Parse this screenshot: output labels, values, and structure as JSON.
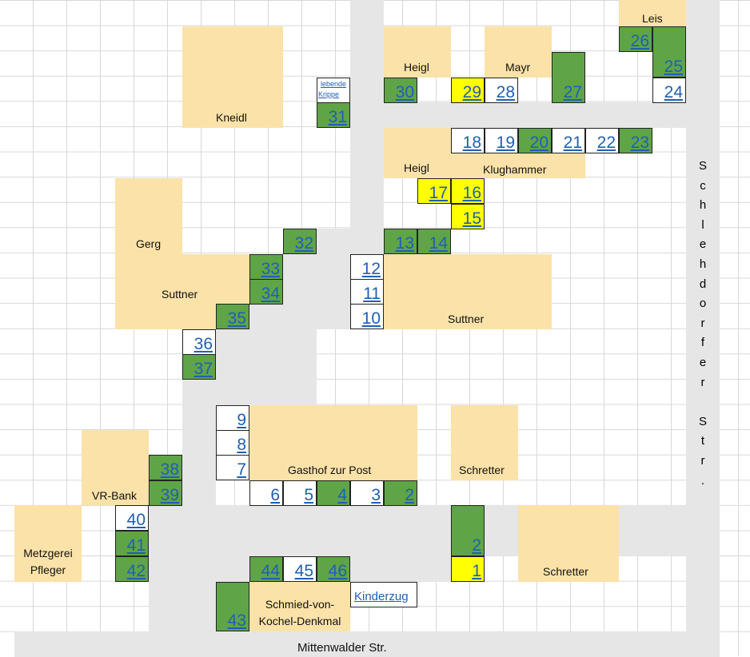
{
  "streets": {
    "bottom": "Mittenwalder Str.",
    "right_letters": [
      "S",
      "c",
      "h",
      "l",
      "e",
      "h",
      "d",
      "o",
      "r",
      "f",
      "e",
      "r",
      "",
      "S",
      "t",
      "r",
      "."
    ]
  },
  "buildings": {
    "leis": "Leis",
    "heigl_top": "Heigl",
    "mayr": "Mayr",
    "kneidl": "Kneidl",
    "heigl_mid": "Heigl",
    "klughammer": "Klughammer",
    "gerg": "Gerg",
    "suttner_left": "Suttner",
    "suttner_right": "Suttner",
    "gasthof": "Gasthof zur Post",
    "schretter_top": "Schretter",
    "schretter_bottom": "Schretter",
    "vrbank": "VR-Bank",
    "metzgerei_line1": "Metzgerei",
    "metzgerei_line2": "Pfleger",
    "denkmal_line1": "Schmied-von-",
    "denkmal_line2": "Kochel-Denkmal"
  },
  "links": {
    "krippe_line1": "lebende",
    "krippe_line2": "Krippe",
    "kinderzug": "Kinderzug"
  },
  "stalls": {
    "s1": "1",
    "s2a": "2",
    "s2b": "2",
    "s3": "3",
    "s4": "4",
    "s5": "5",
    "s6": "6",
    "s7": "7",
    "s8": "8",
    "s9": "9",
    "s10": "10",
    "s11": "11",
    "s12": "12",
    "s13": "13",
    "s14": "14",
    "s15": "15",
    "s16": "16",
    "s17": "17",
    "s18": "18",
    "s19": "19",
    "s20": "20",
    "s21": "21",
    "s22": "22",
    "s23": "23",
    "s24": "24",
    "s25": "25",
    "s26": "26",
    "s27": "27",
    "s28": "28",
    "s29": "29",
    "s30": "30",
    "s31": "31",
    "s32": "32",
    "s33": "33",
    "s34": "34",
    "s35": "35",
    "s36": "36",
    "s37": "37",
    "s38": "38",
    "s39": "39",
    "s40": "40",
    "s41": "41",
    "s42": "42",
    "s43": "43",
    "s44": "44",
    "s45": "45",
    "s46": "46"
  },
  "colors": {
    "occupied": "#5fa447",
    "reserved": "#ffff00",
    "free": "#ffffff",
    "building": "#fbe2a8",
    "road": "#e6e6e6"
  }
}
